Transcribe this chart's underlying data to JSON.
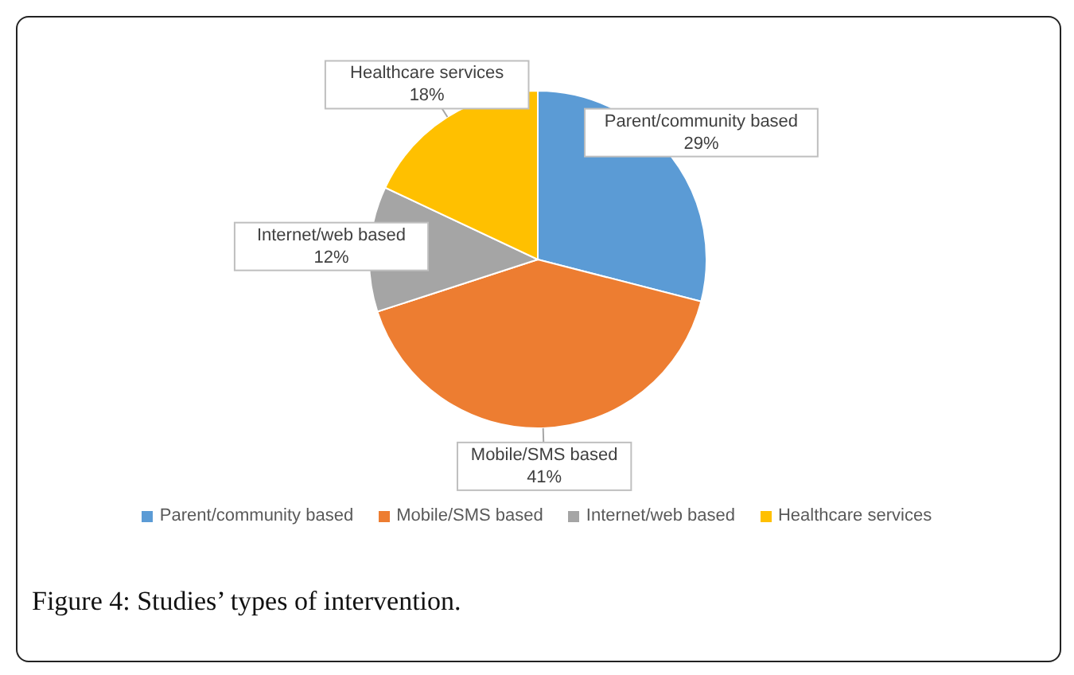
{
  "chart_data": {
    "type": "pie",
    "categories": [
      "Parent/community based",
      "Mobile/SMS based",
      "Internet/web based",
      "Healthcare services"
    ],
    "values": [
      29,
      41,
      12,
      18
    ],
    "colors": [
      "#5b9bd5",
      "#ed7d31",
      "#a5a5a5",
      "#ffc000"
    ],
    "value_labels": [
      "29%",
      "41%",
      "12%",
      "18%"
    ],
    "legend": "bottom",
    "annotations": [
      "Figure 4: Studies’ types of intervention."
    ]
  }
}
